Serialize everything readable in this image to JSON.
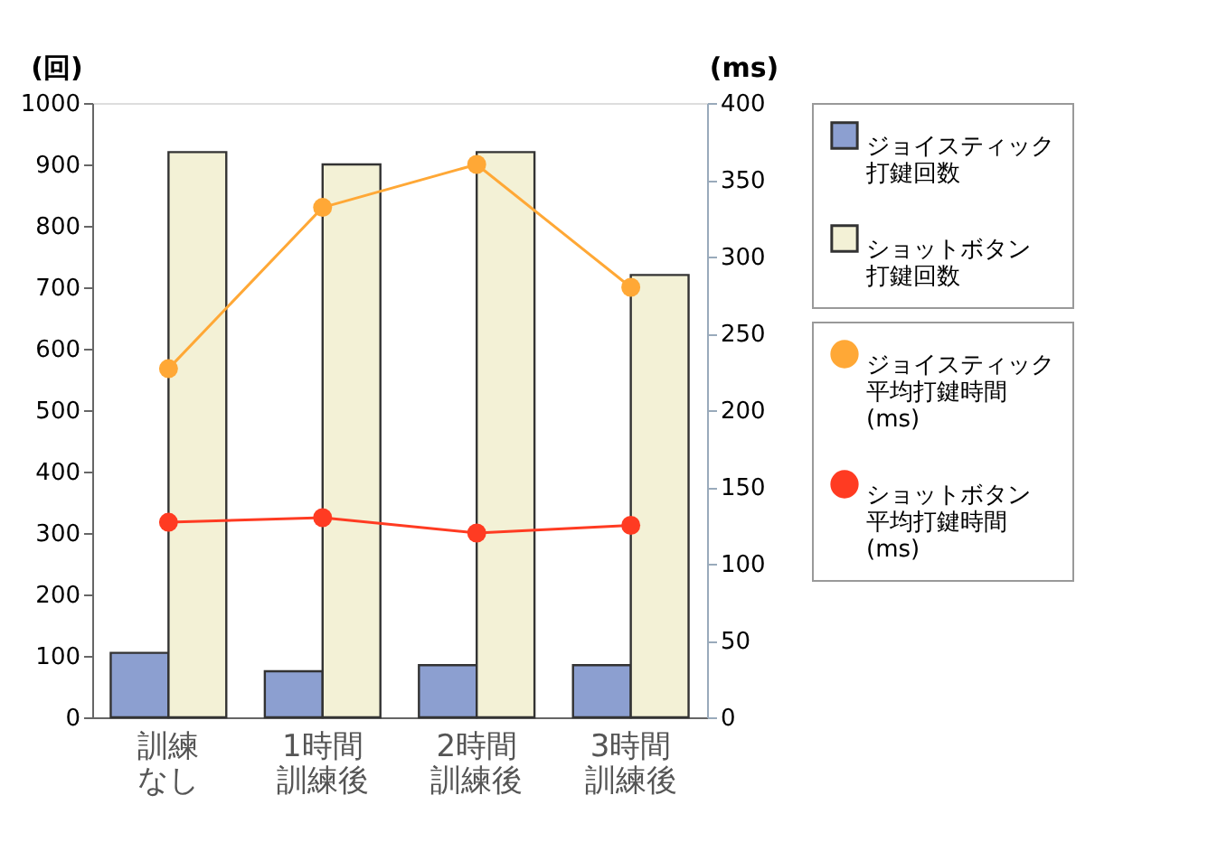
{
  "chart_data": {
    "type": "bar",
    "ylabel": "(回)",
    "y2label": "(ms)",
    "categories": [
      "訓練なし",
      "1時間訓練後",
      "2時間訓練後",
      "3時間訓練後"
    ],
    "series": [
      {
        "name": "ジョイスティック打鍵回数",
        "color": "#8c9fd0",
        "values": [
          105,
          75,
          85,
          85
        ]
      },
      {
        "name": "ショットボタン打鍵回数",
        "color": "#f3f1d6",
        "values": [
          920,
          900,
          920,
          720
        ]
      },
      {
        "name": "ジョイスティック平均打鍵時間(ms)",
        "type": "line",
        "axis": "y2",
        "color": "#ffa836",
        "values": [
          227,
          332,
          360,
          280
        ]
      },
      {
        "name": "ショットボタン平均打鍵時間(ms)",
        "type": "line",
        "axis": "y2",
        "color": "#ff3b22",
        "values": [
          127,
          130,
          120,
          125
        ]
      }
    ],
    "ylim": [
      0,
      1000
    ],
    "yticks": [
      0,
      100,
      200,
      300,
      400,
      500,
      600,
      700,
      800,
      900,
      1000
    ],
    "y2lim": [
      0,
      400
    ],
    "y2ticks": [
      0,
      50,
      100,
      150,
      200,
      250,
      300,
      350,
      400
    ],
    "marker": "circle",
    "legend": "right",
    "grid": false
  }
}
